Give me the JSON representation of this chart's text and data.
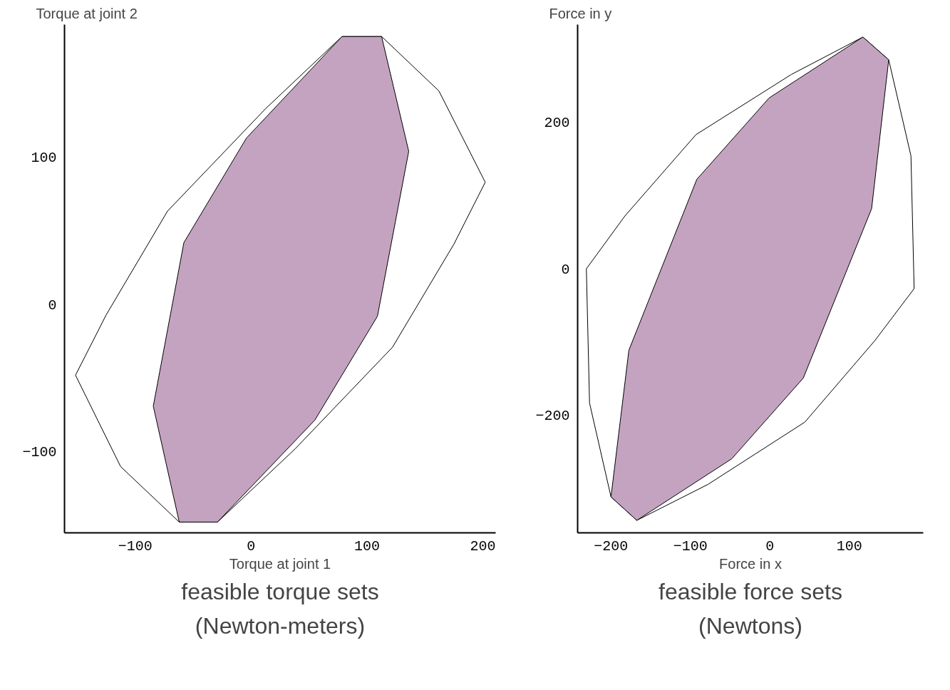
{
  "chart_data": [
    {
      "type": "area",
      "title": "feasible torque sets\n(Newton-meters)",
      "xlabel": "Torque at joint 1",
      "ylabel": "Torque at joint 2",
      "xlim": [
        -161,
        211
      ],
      "ylim": [
        -155,
        190
      ],
      "xticks": [
        -100,
        0,
        100,
        200
      ],
      "yticks": [
        -100,
        0,
        100
      ],
      "grid": false,
      "series": [
        {
          "type": "area",
          "color": "#ffffff",
          "x": [
            -151.5,
            -125,
            -72,
            12.6,
            78.4,
            112.6,
            162,
            202,
            175,
            122,
            38,
            -29,
            -62,
            -112.6,
            -151.5
          ],
          "values": [
            -48,
            -7,
            63.5,
            133,
            181.9,
            181.9,
            145,
            83,
            41,
            -29,
            -98,
            -147.7,
            -147.7,
            -110,
            -48
          ]
        },
        {
          "color": "#c4a3c0",
          "x": [
            78.4,
            112.6,
            136,
            109,
            55,
            -29,
            -62,
            -84.4,
            -58,
            -4
          ],
          "values": [
            181.9,
            181.9,
            104,
            -8,
            -78.5,
            -147.7,
            -147.7,
            -69,
            42,
            113
          ]
        }
      ]
    },
    {
      "type": "area",
      "title": "feasible force sets\n(Newtons)",
      "xlabel": "Force in x",
      "ylabel": "Force in y",
      "xlim": [
        -242,
        193
      ],
      "ylim": [
        -360,
        333
      ],
      "xticks": [
        -200,
        -100,
        0,
        100
      ],
      "yticks": [
        -200,
        0,
        200
      ],
      "grid": false,
      "series": [
        {
          "type": "area",
          "color": "#ffffff",
          "x": [
            -231,
            -227,
            -200,
            -167.5,
            -78,
            44,
            132,
            181.5,
            177.5,
            149.5,
            117,
            27,
            -93,
            -182.5,
            -231
          ],
          "values": [
            0,
            -183,
            -311,
            -343,
            -294,
            -209,
            -98,
            -27,
            154,
            285,
            316,
            265,
            183,
            72,
            0
          ]
        },
        {
          "color": "#c4a3c0",
          "x": [
            117,
            149.5,
            128,
            42,
            -48,
            -167.5,
            -200,
            -177.5,
            -92,
            -1
          ],
          "values": [
            316,
            285,
            82,
            -149,
            -259,
            -343,
            -311,
            -111,
            122,
            233
          ]
        }
      ]
    }
  ]
}
